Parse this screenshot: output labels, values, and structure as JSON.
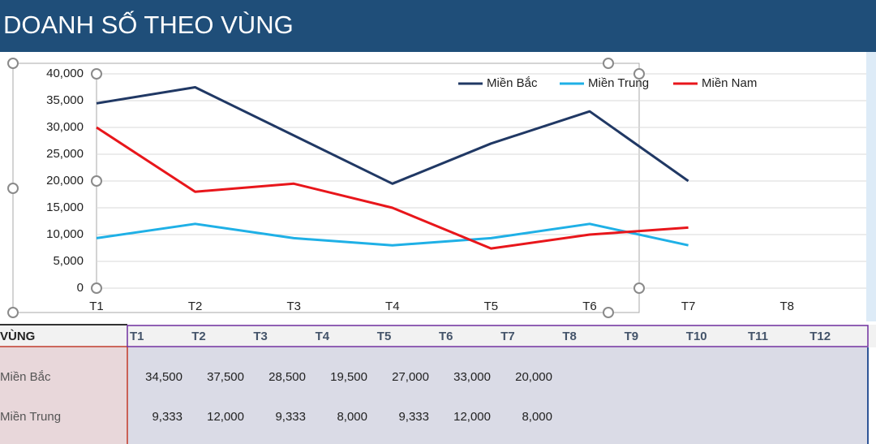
{
  "header": {
    "title": "DOANH SỐ THEO VÙNG"
  },
  "chart_data": {
    "type": "line",
    "categories": [
      "T1",
      "T2",
      "T3",
      "T4",
      "T5",
      "T6",
      "T7",
      "T8"
    ],
    "series": [
      {
        "name": "Miền Bắc",
        "color": "#203864",
        "values": [
          34500,
          37500,
          28500,
          19500,
          27000,
          33000,
          20000,
          null
        ]
      },
      {
        "name": "Miền Trung",
        "color": "#1fb0e6",
        "values": [
          9333,
          12000,
          9333,
          8000,
          9333,
          12000,
          8000,
          null
        ]
      },
      {
        "name": "Miền Nam",
        "color": "#e8161b",
        "values": [
          30000,
          18000,
          19500,
          15000,
          7400,
          10000,
          11300,
          null
        ]
      }
    ],
    "ylim": [
      0,
      40000
    ],
    "yticks": [
      0,
      {
        "value": 5000,
        "label": "5,000"
      },
      {
        "value": 10000,
        "label": "10,000"
      },
      {
        "value": 15000,
        "label": "15,000"
      },
      {
        "value": 20000,
        "label": "20,000"
      },
      {
        "value": 25000,
        "label": "25,000"
      },
      {
        "value": 30000,
        "label": "30,000"
      },
      {
        "value": 35000,
        "label": "35,000"
      },
      {
        "value": 40000,
        "label": "40,000"
      }
    ],
    "grid": true,
    "legend": "top"
  },
  "table": {
    "header": [
      "VÙNG",
      "T1",
      "T2",
      "T3",
      "T4",
      "T5",
      "T6",
      "T7",
      "T8",
      "T9",
      "T10",
      "T11",
      "T12"
    ],
    "rows": [
      [
        "Miền Bắc",
        "34,500",
        "37,500",
        "28,500",
        "19,500",
        "27,000",
        "33,000",
        "20,000"
      ],
      [
        "Miền Trung",
        "9,333",
        "12,000",
        "9,333",
        "8,000",
        "9,333",
        "12,000",
        "8,000"
      ]
    ]
  }
}
